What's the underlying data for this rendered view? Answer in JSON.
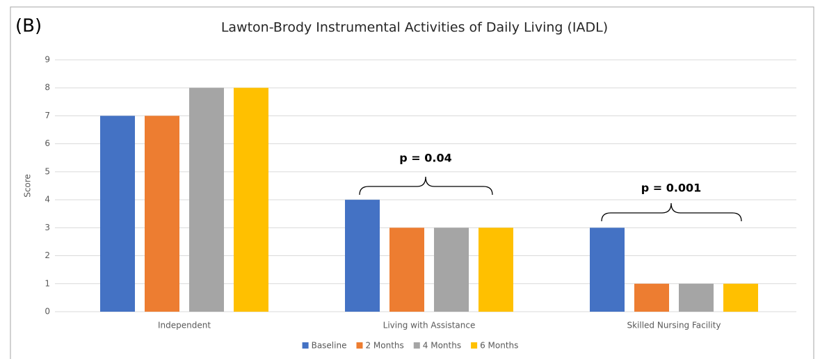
{
  "chart_data": {
    "type": "bar",
    "panel_label": "(B)",
    "title": "Lawton-Brody Instrumental Activities of Daily Living (IADL)",
    "y_label": "Score",
    "categories": [
      "Independent",
      "Living with Assistance",
      "Skilled Nursing Facility"
    ],
    "series": [
      {
        "name": "Baseline",
        "color": "#4472c4",
        "values": [
          7,
          4,
          3
        ]
      },
      {
        "name": "2 Months",
        "color": "#ed7d31",
        "values": [
          7,
          3,
          1
        ]
      },
      {
        "name": "4 Months",
        "color": "#a5a5a5",
        "values": [
          8,
          3,
          1
        ]
      },
      {
        "name": "6 Months",
        "color": "#ffc000",
        "values": [
          8,
          3,
          1
        ]
      }
    ],
    "annotations": [
      "p = 0.04",
      "p = 0.001"
    ],
    "ylim": [
      0,
      9
    ],
    "yticks": [
      0,
      1,
      2,
      3,
      4,
      5,
      6,
      7,
      8,
      9
    ],
    "grid": true,
    "legend": "bottom"
  }
}
